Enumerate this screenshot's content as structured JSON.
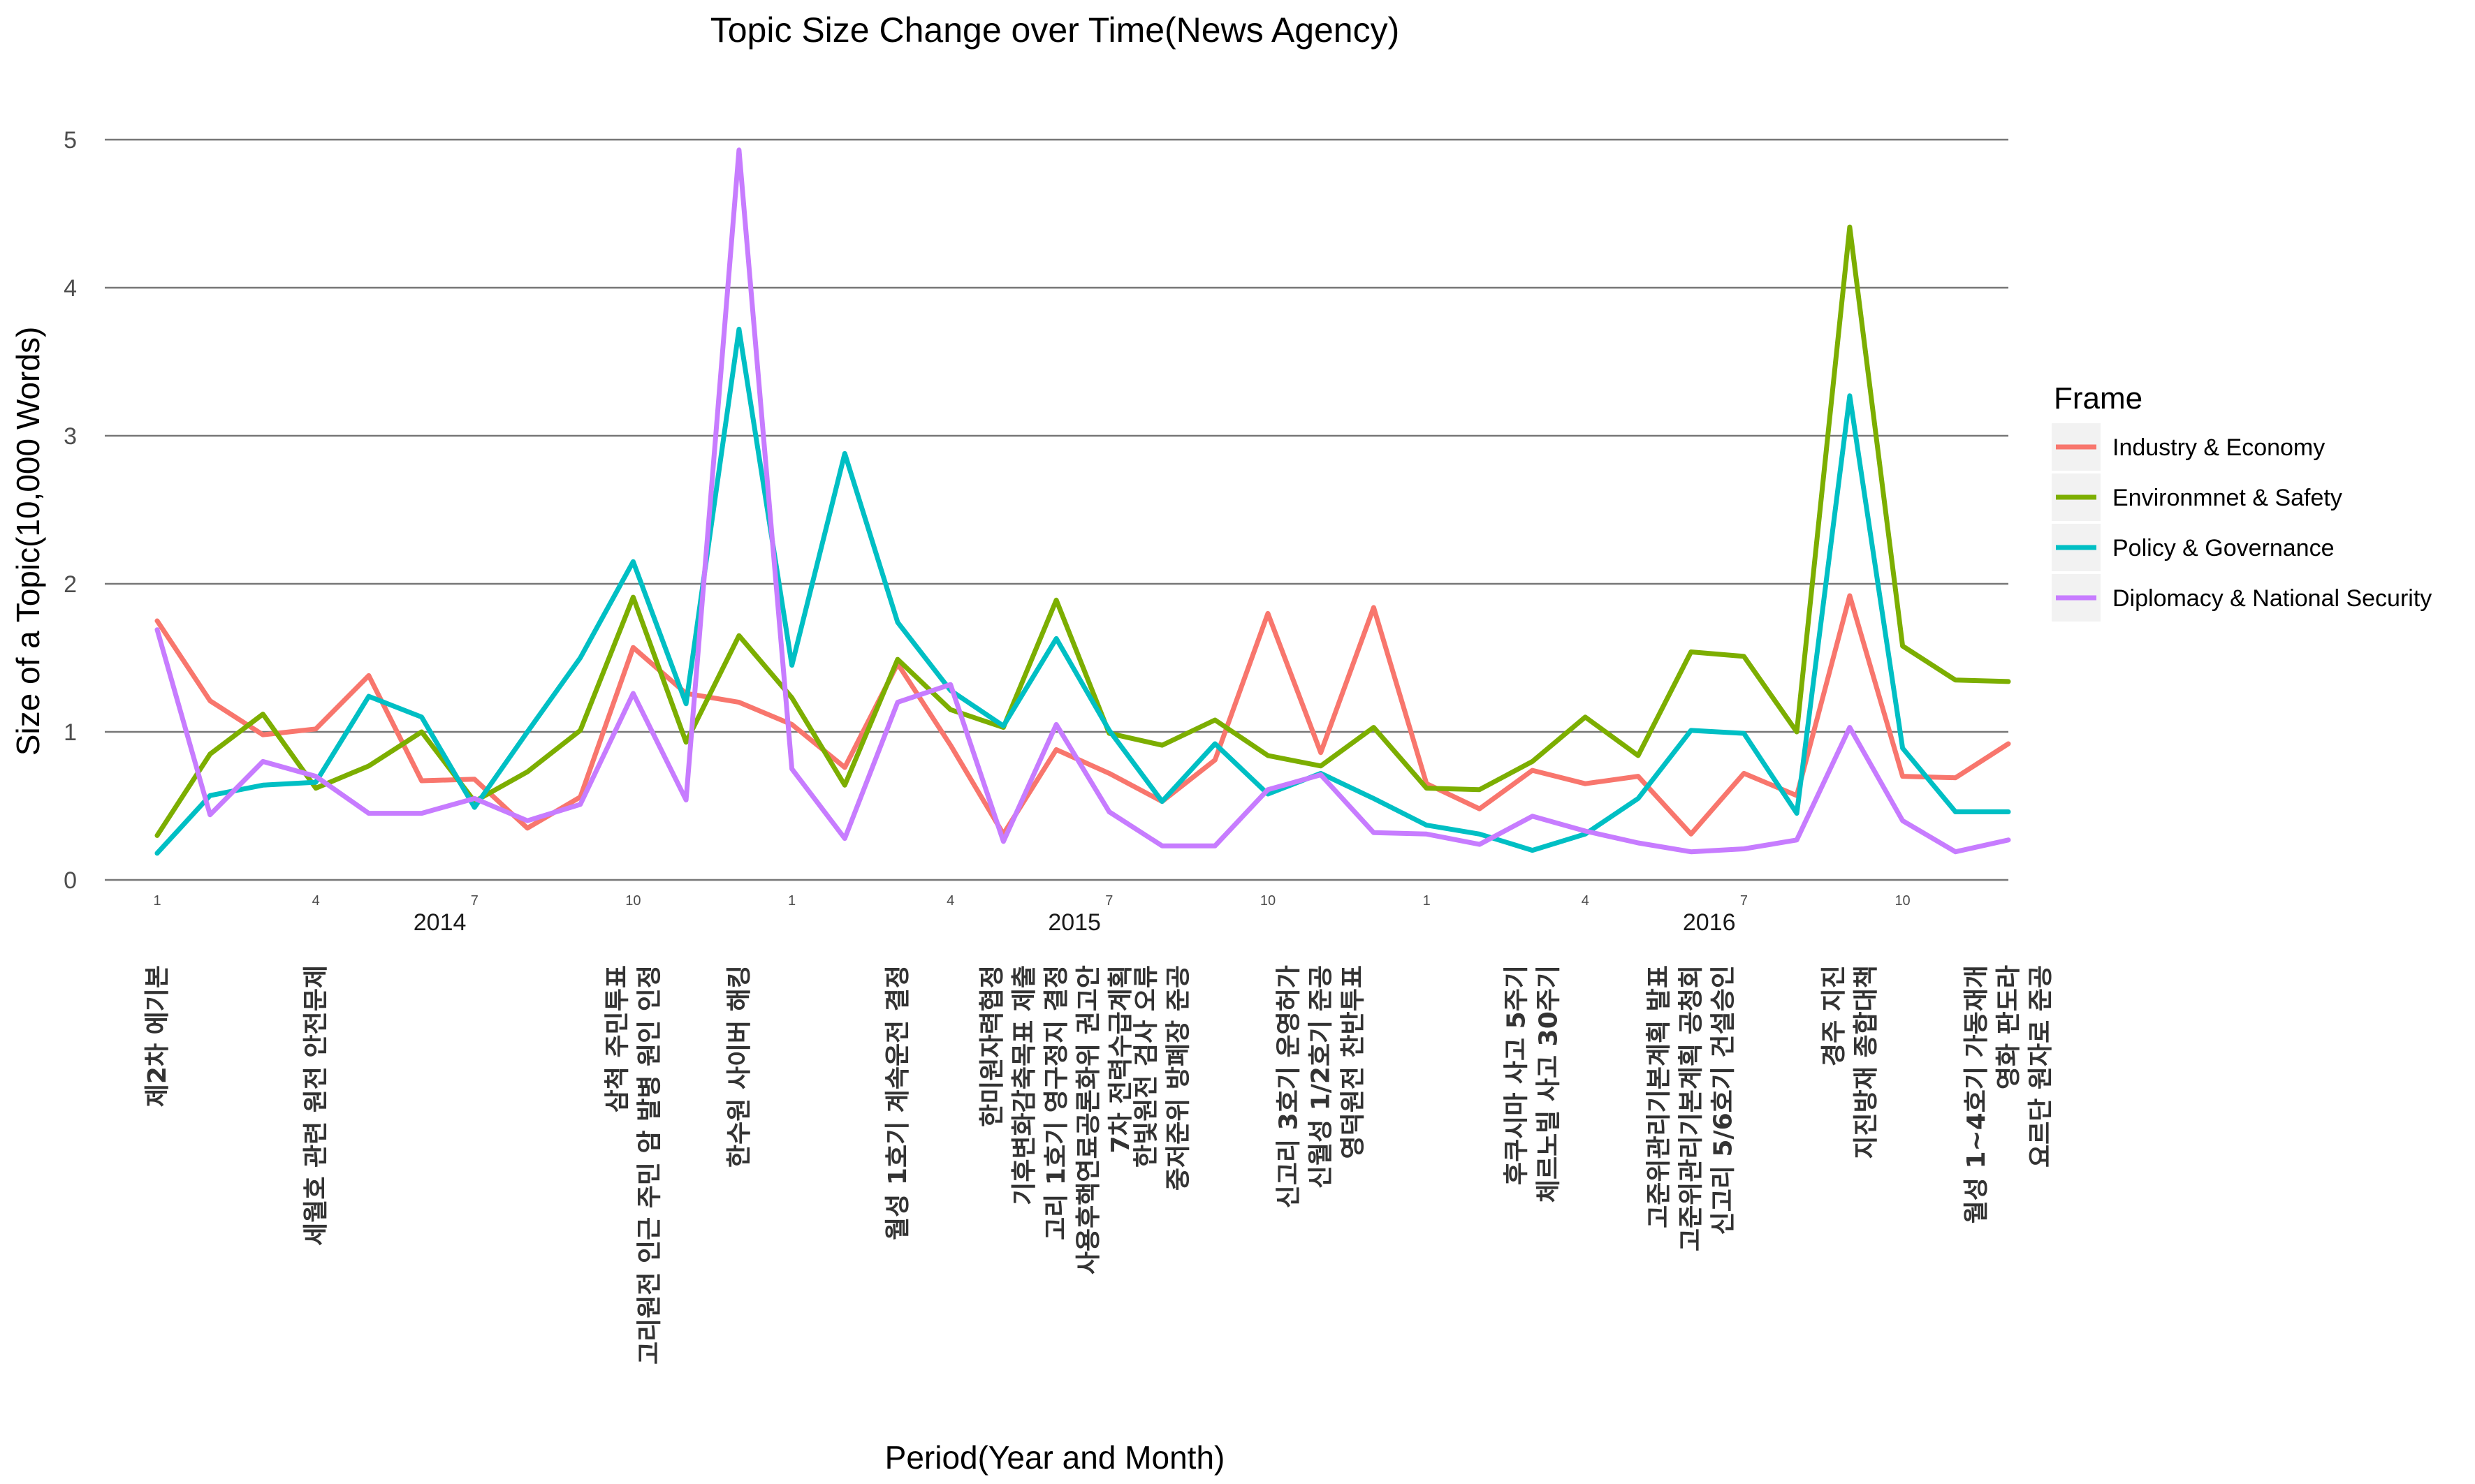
{
  "chart_data": {
    "type": "line",
    "title": "Topic Size Change over Time(News Agency)",
    "xlabel": "Period(Year and Month)",
    "ylabel": "Size of a Topic(10,000 Words)",
    "ylim": [
      0,
      5
    ],
    "yticks": [
      "0",
      "1",
      "2",
      "3",
      "4",
      "5"
    ],
    "grid": true,
    "legend_position": "right",
    "legend_title": "Frame",
    "month_ticks": [
      "1",
      "4",
      "7",
      "10",
      "1",
      "4",
      "7",
      "10",
      "1",
      "4",
      "7",
      "10"
    ],
    "month_tick_index": [
      0,
      3,
      6,
      9,
      12,
      15,
      18,
      21,
      24,
      27,
      30,
      33
    ],
    "years": [
      "2014",
      "2015",
      "2016"
    ],
    "year_label_index": [
      5,
      17,
      29
    ],
    "x": [
      1,
      2,
      3,
      4,
      5,
      6,
      7,
      8,
      9,
      10,
      11,
      12,
      13,
      14,
      15,
      16,
      17,
      18,
      19,
      20,
      21,
      22,
      23,
      24,
      25,
      26,
      27,
      28,
      29,
      30,
      31,
      32,
      33,
      34,
      35,
      36
    ],
    "series": [
      {
        "name": "Industry & Economy",
        "color": "#F8766D",
        "values": [
          1.75,
          1.21,
          0.98,
          1.02,
          1.38,
          0.67,
          0.68,
          0.35,
          0.56,
          1.57,
          1.26,
          1.2,
          1.05,
          0.76,
          1.46,
          0.91,
          0.31,
          0.88,
          0.72,
          0.53,
          0.81,
          1.8,
          0.86,
          1.84,
          0.65,
          0.48,
          0.74,
          0.65,
          0.7,
          0.31,
          0.72,
          0.57,
          1.92,
          0.7,
          0.69,
          0.92
        ]
      },
      {
        "name": "Environmnet & Safety",
        "color": "#7CAE00",
        "values": [
          0.3,
          0.85,
          1.12,
          0.62,
          0.77,
          1.0,
          0.53,
          0.73,
          1.01,
          1.91,
          0.93,
          1.65,
          1.23,
          0.64,
          1.49,
          1.15,
          1.03,
          1.89,
          0.99,
          0.91,
          1.08,
          0.84,
          0.77,
          1.03,
          0.62,
          0.61,
          0.8,
          1.1,
          0.84,
          1.54,
          1.51,
          1.0,
          4.41,
          1.58,
          1.35,
          1.34
        ]
      },
      {
        "name": "Policy & Governance",
        "color": "#00BFC4",
        "values": [
          0.18,
          0.57,
          0.64,
          0.66,
          1.24,
          1.1,
          0.49,
          1.0,
          1.5,
          2.15,
          1.19,
          3.72,
          1.45,
          2.88,
          1.74,
          1.28,
          1.04,
          1.63,
          1.01,
          0.53,
          0.92,
          0.58,
          0.72,
          0.55,
          0.37,
          0.31,
          0.2,
          0.31,
          0.55,
          1.01,
          0.99,
          0.45,
          3.27,
          0.89,
          0.46,
          0.46
        ]
      },
      {
        "name": "Diplomacy & National Security",
        "color": "#C77CFF",
        "values": [
          1.69,
          0.44,
          0.8,
          0.7,
          0.45,
          0.45,
          0.55,
          0.4,
          0.51,
          1.26,
          0.54,
          4.93,
          0.75,
          0.28,
          1.2,
          1.32,
          0.26,
          1.05,
          0.46,
          0.23,
          0.23,
          0.61,
          0.71,
          0.32,
          0.31,
          0.24,
          0.43,
          0.33,
          0.25,
          0.19,
          0.21,
          0.27,
          1.03,
          0.4,
          0.19,
          0.27
        ]
      }
    ],
    "event_annotations": [
      {
        "index": 0,
        "lines": [
          "제2차 에기본"
        ]
      },
      {
        "index": 3,
        "lines": [
          "세월호 관련 원전 안전문제"
        ]
      },
      {
        "index": 9,
        "lines": [
          "삼척 주민투표",
          "고리원전 인근 주민 암 발병 원인 인정"
        ]
      },
      {
        "index": 11,
        "lines": [
          "한수원 사이버 해킹"
        ]
      },
      {
        "index": 14,
        "lines": [
          "월성 1호기 계속운전 결정"
        ]
      },
      {
        "index": 17,
        "lines": [
          "한미원자력협정",
          "기후변화감축목표 제출",
          "고리 1호기 영구정지 결정",
          "사용후핵연료공론화위 권고안",
          "7차 전력수급계획"
        ]
      },
      {
        "index": 19,
        "lines": [
          "한빛원전 검사 오류",
          "중저준위 방폐장 준공"
        ]
      },
      {
        "index": 22,
        "lines": [
          "신고리 3호기 운영허가",
          "신월성 1/2호기 준공",
          "영덕원전 찬반투표"
        ]
      },
      {
        "index": 26,
        "lines": [
          "후쿠시마 사고 5주기",
          "체르노빌 사고 30주기"
        ]
      },
      {
        "index": 29,
        "lines": [
          "고준위관리기본계획 발표",
          "고준위관리기본계획 공청회",
          "신고리 5/6호기 건설승인"
        ]
      },
      {
        "index": 32,
        "lines": [
          "경주 지진",
          "지진방재 종합대책"
        ]
      },
      {
        "index": 35,
        "lines": [
          "월성 1~4호기 가동재개",
          "영화 판도라",
          "요르단 원자로 준공"
        ]
      }
    ]
  }
}
